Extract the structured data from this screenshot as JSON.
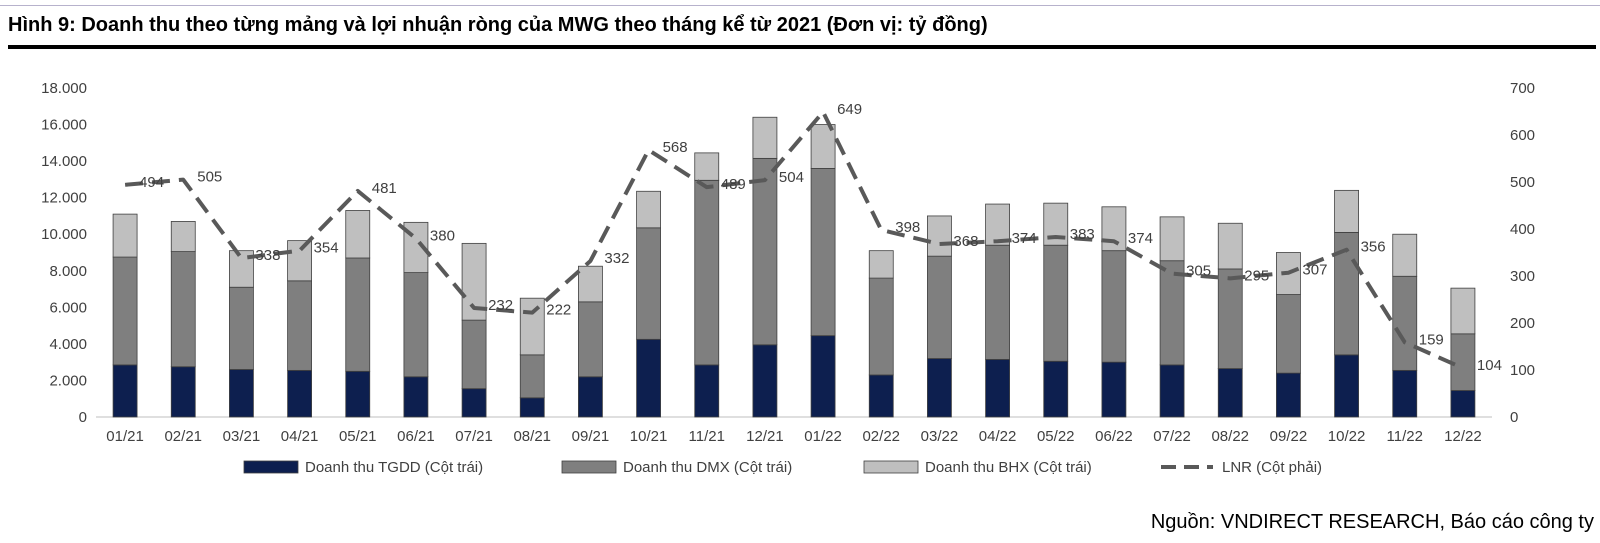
{
  "figure": {
    "title": "Hình 9: Doanh thu theo từng mảng và lợi nhuận ròng của MWG theo tháng kể từ 2021 (Đơn vị: tỷ đồng)",
    "source": "Nguồn: VNDIRECT RESEARCH, Báo cáo công ty"
  },
  "chart_data": {
    "type": "bar",
    "stacked": true,
    "categories": [
      "01/21",
      "02/21",
      "03/21",
      "04/21",
      "05/21",
      "06/21",
      "07/21",
      "08/21",
      "09/21",
      "10/21",
      "11/21",
      "12/21",
      "01/22",
      "02/22",
      "03/22",
      "04/22",
      "05/22",
      "06/22",
      "07/22",
      "08/22",
      "09/22",
      "10/22",
      "11/22",
      "12/22"
    ],
    "y_left": {
      "ylim": [
        0,
        18000
      ],
      "ticks": [
        0,
        2000,
        4000,
        6000,
        8000,
        10000,
        12000,
        14000,
        16000,
        18000
      ],
      "tick_labels": [
        "0",
        "2.000",
        "4.000",
        "6.000",
        "8.000",
        "10.000",
        "12.000",
        "14.000",
        "16.000",
        "18.000"
      ]
    },
    "y_right": {
      "ylim": [
        0,
        700
      ],
      "ticks": [
        0,
        100,
        200,
        300,
        400,
        500,
        600,
        700
      ],
      "tick_labels": [
        "0",
        "100",
        "200",
        "300",
        "400",
        "500",
        "600",
        "700"
      ]
    },
    "series": [
      {
        "name": "Doanh thu TGDD (Cột trái)",
        "type": "bar",
        "axis": "left",
        "color": "#0d1f4f",
        "values": [
          2850,
          2750,
          2600,
          2550,
          2500,
          2200,
          1550,
          1050,
          2200,
          4250,
          2850,
          3950,
          4450,
          2300,
          3200,
          3150,
          3050,
          3000,
          2850,
          2650,
          2400,
          3400,
          2550,
          1450
        ]
      },
      {
        "name": "Doanh thu DMX (Cột trái)",
        "type": "bar",
        "axis": "left",
        "color": "#7f7f7f",
        "values": [
          5900,
          6300,
          4500,
          4900,
          6200,
          5700,
          3750,
          2350,
          4100,
          6100,
          10100,
          10200,
          9150,
          5300,
          5600,
          6250,
          6350,
          6100,
          5700,
          5450,
          4300,
          6700,
          5150,
          3100
        ]
      },
      {
        "name": "Doanh thu BHX (Cột trái)",
        "type": "bar",
        "axis": "left",
        "color": "#bfbfbf",
        "values": [
          2350,
          1650,
          2000,
          2200,
          2600,
          2750,
          4200,
          3100,
          1950,
          2000,
          1500,
          2250,
          2400,
          1500,
          2200,
          2250,
          2300,
          2400,
          2400,
          2500,
          2300,
          2300,
          2300,
          2500
        ]
      },
      {
        "name": "LNR (Cột phải)",
        "type": "line",
        "axis": "right",
        "color": "#595959",
        "dashed": true,
        "values": [
          494,
          505,
          338,
          354,
          481,
          380,
          232,
          222,
          332,
          568,
          489,
          504,
          649,
          398,
          368,
          374,
          383,
          374,
          305,
          295,
          307,
          356,
          159,
          104
        ],
        "data_labels": [
          "494",
          "505",
          "338",
          "354",
          "481",
          "380",
          "232",
          "222",
          "332",
          "568",
          "489",
          "504",
          "649",
          "398",
          "368",
          "374",
          "383",
          "374",
          "305",
          "295",
          "307",
          "356",
          "159",
          "104"
        ]
      }
    ],
    "legend": "bottom",
    "grid": false
  }
}
